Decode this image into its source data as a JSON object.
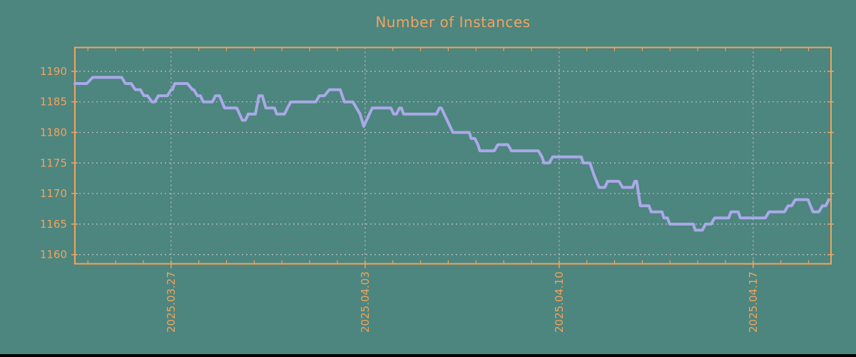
{
  "title": "Number of Instances",
  "colors": {
    "background": "#4d857f",
    "axis_orange": "#f2a45c",
    "line": "#a9a9e8",
    "grid": "#bcc3c1",
    "bottom_bar": "#000000"
  },
  "chart_data": {
    "type": "line",
    "title": "Number of Instances",
    "xlabel": "",
    "ylabel": "",
    "legend": "none",
    "grid": "dashed",
    "y_axis": {
      "ticks": [
        1160,
        1165,
        1170,
        1175,
        1180,
        1185,
        1190
      ],
      "range": [
        1158.5,
        1193.9
      ]
    },
    "x_axis": {
      "major_ticks": [
        {
          "offset_days": 0,
          "label": "2025.03.27"
        },
        {
          "offset_days": 7,
          "label": "2025.04.03"
        },
        {
          "offset_days": 14,
          "label": "2025.04.10"
        },
        {
          "offset_days": 21,
          "label": "2025.04.17"
        }
      ],
      "minor_tick_interval_days": 1,
      "range_days": [
        -3.47,
        23.81
      ]
    },
    "series": [
      {
        "name": "instances",
        "points": [
          [
            -3.47,
            1188
          ],
          [
            -3.04,
            1188
          ],
          [
            -2.83,
            1189
          ],
          [
            -1.78,
            1189
          ],
          [
            -1.65,
            1188
          ],
          [
            -1.44,
            1188
          ],
          [
            -1.29,
            1187
          ],
          [
            -1.11,
            1187
          ],
          [
            -0.98,
            1186
          ],
          [
            -0.85,
            1186
          ],
          [
            -0.69,
            1185
          ],
          [
            -0.59,
            1185
          ],
          [
            -0.46,
            1186
          ],
          [
            -0.13,
            1186
          ],
          [
            0,
            1187
          ],
          [
            0.05,
            1187
          ],
          [
            0.13,
            1188
          ],
          [
            0.59,
            1188
          ],
          [
            0.77,
            1187
          ],
          [
            0.82,
            1187
          ],
          [
            0.95,
            1186
          ],
          [
            1.06,
            1186
          ],
          [
            1.16,
            1185
          ],
          [
            1.49,
            1185
          ],
          [
            1.6,
            1186
          ],
          [
            1.75,
            1186
          ],
          [
            1.93,
            1184
          ],
          [
            2.37,
            1184
          ],
          [
            2.57,
            1182
          ],
          [
            2.68,
            1182
          ],
          [
            2.78,
            1183
          ],
          [
            3.04,
            1183
          ],
          [
            3.17,
            1186
          ],
          [
            3.29,
            1186
          ],
          [
            3.42,
            1184
          ],
          [
            3.73,
            1184
          ],
          [
            3.81,
            1183
          ],
          [
            4.09,
            1183
          ],
          [
            4.2,
            1184
          ],
          [
            4.32,
            1185
          ],
          [
            5.22,
            1185
          ],
          [
            5.35,
            1186
          ],
          [
            5.53,
            1186
          ],
          [
            5.71,
            1187
          ],
          [
            6.1,
            1187
          ],
          [
            6.25,
            1185
          ],
          [
            6.56,
            1185
          ],
          [
            6.82,
            1183
          ],
          [
            6.95,
            1181
          ],
          [
            7.26,
            1184
          ],
          [
            7.93,
            1184
          ],
          [
            8.03,
            1183
          ],
          [
            8.13,
            1183
          ],
          [
            8.24,
            1184
          ],
          [
            8.31,
            1184
          ],
          [
            8.39,
            1183
          ],
          [
            9.57,
            1183
          ],
          [
            9.68,
            1184
          ],
          [
            9.75,
            1184
          ],
          [
            9.96,
            1182
          ],
          [
            10.17,
            1180
          ],
          [
            10.76,
            1180
          ],
          [
            10.83,
            1179
          ],
          [
            10.96,
            1179
          ],
          [
            11.07,
            1178
          ],
          [
            11.14,
            1177
          ],
          [
            11.66,
            1177
          ],
          [
            11.79,
            1178
          ],
          [
            12.15,
            1178
          ],
          [
            12.28,
            1177
          ],
          [
            13.25,
            1177
          ],
          [
            13.38,
            1176
          ],
          [
            13.46,
            1175
          ],
          [
            13.64,
            1175
          ],
          [
            13.77,
            1176
          ],
          [
            14.8,
            1176
          ],
          [
            14.87,
            1175
          ],
          [
            15.11,
            1175
          ],
          [
            15.26,
            1173
          ],
          [
            15.44,
            1171
          ],
          [
            15.65,
            1171
          ],
          [
            15.75,
            1172
          ],
          [
            16.16,
            1172
          ],
          [
            16.29,
            1171
          ],
          [
            16.65,
            1171
          ],
          [
            16.73,
            1172
          ],
          [
            16.8,
            1172
          ],
          [
            16.93,
            1168
          ],
          [
            17.24,
            1168
          ],
          [
            17.32,
            1167
          ],
          [
            17.71,
            1167
          ],
          [
            17.78,
            1166
          ],
          [
            17.91,
            1166
          ],
          [
            17.99,
            1165
          ],
          [
            18.84,
            1165
          ],
          [
            18.91,
            1164
          ],
          [
            19.17,
            1164
          ],
          [
            19.28,
            1165
          ],
          [
            19.48,
            1165
          ],
          [
            19.61,
            1166
          ],
          [
            20.12,
            1166
          ],
          [
            20.2,
            1167
          ],
          [
            20.46,
            1167
          ],
          [
            20.54,
            1166
          ],
          [
            21.44,
            1166
          ],
          [
            21.57,
            1167
          ],
          [
            22.13,
            1167
          ],
          [
            22.26,
            1168
          ],
          [
            22.39,
            1168
          ],
          [
            22.52,
            1169
          ],
          [
            22.98,
            1169
          ],
          [
            23.16,
            1167
          ],
          [
            23.37,
            1167
          ],
          [
            23.5,
            1168
          ],
          [
            23.62,
            1168
          ],
          [
            23.73,
            1169
          ]
        ]
      }
    ]
  }
}
